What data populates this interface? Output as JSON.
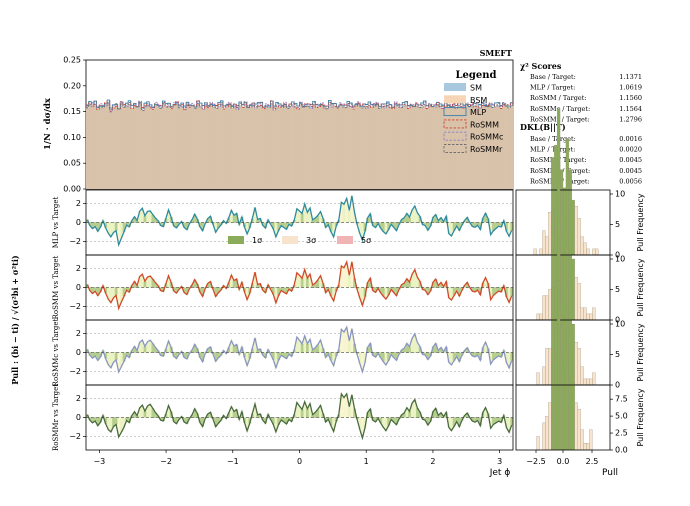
{
  "chart_data": {
    "type": "histogram-with-pull-panels",
    "tag": "SMEFT",
    "main": {
      "ylabel": "1/N · dσ/dx",
      "ylim": [
        0,
        0.25
      ],
      "yticks": [
        "0.00",
        "0.05",
        "0.10",
        "0.15",
        "0.20",
        "0.25"
      ],
      "xlim": [
        -3.2,
        3.2
      ],
      "legend": {
        "title": "Legend",
        "items": [
          {
            "label": "SM",
            "color": "#a8c8e0",
            "style": "fill"
          },
          {
            "label": "BSM",
            "color": "#f5d5b5",
            "style": "fill"
          },
          {
            "label": "MLP",
            "color": "#3a80b0",
            "style": "solid"
          },
          {
            "label": "RoSMM",
            "color": "#d04030",
            "style": "dashed"
          },
          {
            "label": "RoSMMc",
            "color": "#9080c0",
            "style": "dashed"
          },
          {
            "label": "RoSMMr",
            "color": "#707070",
            "style": "dashed"
          }
        ]
      },
      "chi2_title": "χ² Scores",
      "chi2": [
        {
          "label": "Base / Target:",
          "value": "1.1371"
        },
        {
          "label": "MLP / Target:",
          "value": "1.0619"
        },
        {
          "label": "RoSMM / Target:",
          "value": "1.1560"
        },
        {
          "label": "RoSMMc / Target:",
          "value": "1.1564"
        },
        {
          "label": "RoSMMr / Target:",
          "value": "1.2796"
        }
      ],
      "dks_title": "DKL(B||T)",
      "dks": [
        {
          "label": "Base / Target:",
          "value": "0.0016"
        },
        {
          "label": "MLP / Target:",
          "value": "0.0020"
        },
        {
          "label": "RoSMM / Target:",
          "value": "0.0045"
        },
        {
          "label": "RoSMMc / Target:",
          "value": "0.0045"
        },
        {
          "label": "RoSMMr / Target:",
          "value": "0.0056"
        }
      ]
    },
    "pull_ylabel": "Pull : (bi − ti) / √(σ²bi + σ²ti)",
    "sigma_legend": [
      "1σ",
      "3σ",
      "5σ"
    ],
    "sigma_colors": [
      "#8aab5a",
      "#f8e4cc",
      "#f0b4b4"
    ],
    "x_ticks": [
      -3,
      -2,
      -1,
      0,
      1,
      2,
      3
    ],
    "xlabel": "Jet ϕ",
    "pull_hist_xticks": [
      "−2.5",
      "0.0",
      "2.5"
    ],
    "pull_hist_xlabel": "Pull",
    "pull_hist_ylabel": "Pull Frequency",
    "panels": [
      {
        "model": "MLP",
        "color": "#2f8aa0",
        "ylabel": "MLP vs Target",
        "hist_yticks": [
          0,
          5,
          10
        ],
        "hist_ymax": 10
      },
      {
        "model": "RoSMM",
        "color": "#d04a2a",
        "ylabel": "RoSMM vs Target",
        "hist_yticks": [
          0,
          5,
          10
        ],
        "hist_ymax": 10
      },
      {
        "model": "RoSMMc",
        "color": "#8a96c0",
        "ylabel": "RoSMMc vs Target",
        "hist_yticks": [
          0,
          5,
          10
        ],
        "hist_ymax": 10
      },
      {
        "model": "RoSMMr",
        "color": "#4a6a40",
        "ylabel": "RoSMMr vs Target",
        "hist_yticks": [
          0.0,
          2.5,
          5.0,
          7.5
        ],
        "hist_ymax": 9
      }
    ],
    "pull_values": [
      0.3,
      -0.3,
      -0.6,
      -0.4,
      -0.9,
      -0.5,
      0.2,
      -0.6,
      -1.2,
      -1.5,
      -1.0,
      -0.8,
      -2.2,
      -1.6,
      -1.0,
      -0.3,
      -0.5,
      0.2,
      0.6,
      0.2,
      1.1,
      1.4,
      0.7,
      1.2,
      1.3,
      0.9,
      0.5,
      0.2,
      -0.3,
      -0.4,
      0.4,
      1.3,
      0.6,
      -0.4,
      -0.6,
      -0.2,
      0.1,
      -0.5,
      -0.7,
      -0.1,
      0.3,
      0.9,
      0.4,
      -0.5,
      -0.9,
      -0.1,
      0.4,
      0.6,
      -0.2,
      -1.0,
      -0.6,
      -0.3,
      0.2,
      -0.1,
      0.5,
      1.2,
      0.7,
      0.9,
      -0.2,
      0.6,
      -0.5,
      -1.3,
      -0.6,
      0.4,
      1.5,
      0.3,
      0.4,
      -0.3,
      -0.6,
      0.3,
      -0.2,
      -0.7,
      -1.5,
      -0.8,
      -0.3,
      -0.5,
      -0.7,
      -0.2,
      -0.4,
      0.3,
      1.5,
      1.2,
      0.9,
      1.8,
      1.0,
      1.5,
      0.3,
      0.5,
      0.8,
      1.2,
      0.4,
      -0.5,
      -0.2,
      -0.9,
      -1.5,
      -0.4,
      0.3,
      2.3,
      2.0,
      2.5,
      1.2,
      2.6,
      1.0,
      -0.2,
      -1.2,
      -2.0,
      -1.0,
      0.5,
      0.9,
      -0.3,
      -0.5,
      -0.1,
      -0.6,
      -1.0,
      -1.3,
      -0.8,
      -0.2,
      -0.5,
      -0.8,
      -0.2,
      0.3,
      0.5,
      1.0,
      0.6,
      1.4,
      1.8,
      1.0,
      0.6,
      -0.2,
      -0.3,
      -0.8,
      -0.4,
      0.6,
      0.9,
      0.2,
      0.5,
      0.1,
      0.6,
      -1.1,
      -1.4,
      -0.9,
      -0.4,
      -0.9,
      -0.3,
      0.2,
      0.5,
      0.0,
      -0.4,
      -0.5,
      -0.3,
      -0.8,
      0.5,
      1.0,
      0.4,
      -1.2,
      -0.8,
      -0.6,
      -0.4,
      -0.5,
      0.2,
      -1.0,
      -1.5,
      -0.8
    ],
    "main_values": [
      0.158,
      0.163,
      0.16,
      0.165,
      0.155,
      0.16,
      0.158,
      0.162,
      0.166,
      0.15,
      0.158,
      0.161,
      0.154,
      0.165,
      0.159,
      0.16,
      0.164,
      0.157,
      0.162,
      0.158,
      0.166,
      0.153,
      0.16,
      0.162,
      0.158,
      0.155,
      0.163,
      0.16,
      0.157,
      0.164,
      0.159,
      0.161,
      0.156,
      0.162,
      0.165,
      0.158,
      0.16,
      0.154,
      0.163,
      0.159,
      0.161,
      0.157,
      0.166,
      0.16,
      0.155,
      0.162,
      0.158,
      0.163,
      0.16,
      0.157,
      0.161,
      0.164,
      0.156,
      0.16,
      0.163,
      0.158,
      0.16,
      0.155,
      0.162,
      0.159,
      0.165,
      0.157,
      0.16,
      0.162,
      0.158,
      0.161,
      0.163,
      0.156,
      0.16,
      0.159,
      0.166,
      0.154,
      0.161,
      0.16,
      0.158,
      0.163,
      0.157,
      0.16,
      0.162,
      0.159,
      0.156,
      0.164,
      0.158,
      0.161,
      0.16,
      0.157,
      0.163,
      0.159,
      0.16,
      0.162,
      0.158,
      0.156,
      0.165,
      0.159,
      0.161,
      0.157,
      0.162,
      0.16,
      0.158,
      0.163,
      0.16,
      0.156,
      0.161,
      0.164,
      0.158,
      0.16,
      0.157,
      0.162,
      0.159,
      0.161,
      0.163,
      0.157,
      0.16,
      0.158,
      0.162,
      0.159,
      0.156,
      0.164,
      0.16,
      0.158,
      0.161,
      0.163,
      0.157,
      0.16,
      0.159,
      0.162,
      0.158,
      0.16,
      0.164,
      0.157,
      0.161,
      0.159,
      0.16,
      0.163,
      0.158,
      0.156,
      0.162,
      0.16,
      0.159,
      0.161,
      0.157,
      0.163,
      0.16,
      0.158,
      0.162,
      0.159,
      0.16,
      0.161,
      0.158,
      0.157,
      0.163,
      0.16,
      0.159,
      0.162,
      0.158,
      0.16,
      0.161,
      0.157,
      0.163,
      0.16,
      0.158,
      0.162
    ]
  }
}
